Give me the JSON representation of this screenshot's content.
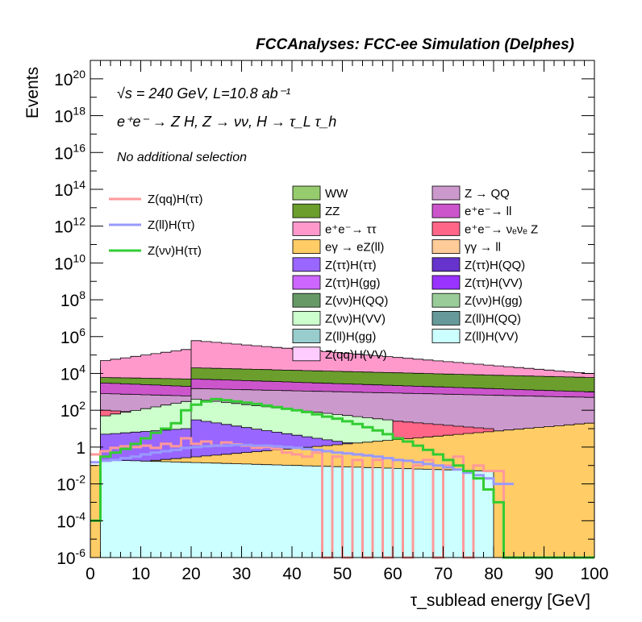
{
  "header": {
    "title": "FCCAnalyses: FCC-ee Simulation (Delphes)"
  },
  "annotations": {
    "energy_line": "√s = 240 GeV, L=10.8 ab⁻¹",
    "process_line": "e⁺e⁻ → Z H, Z → νν, H → τ_L τ_h",
    "selection_line": "No additional selection"
  },
  "chart_data": {
    "type": "bar",
    "stacked": true,
    "title": "FCCAnalyses: FCC-ee Simulation (Delphes)",
    "xlabel": "τ_sublead energy [GeV]",
    "ylabel": "Events",
    "xlim": [
      0,
      100
    ],
    "ylim": [
      1e-06,
      1e+21
    ],
    "yscale": "log",
    "bin_width": 2,
    "x_ticks": [
      0,
      10,
      20,
      30,
      40,
      50,
      60,
      70,
      80,
      90,
      100
    ],
    "y_tick_exponents": [
      -6,
      -4,
      -2,
      0,
      2,
      4,
      6,
      8,
      10,
      12,
      14,
      16,
      18,
      20
    ],
    "legend_placement": "top-center",
    "stack_envelopes": [
      {
        "name": "WW",
        "color": "#96cc6e",
        "segments": [
          [
            2,
            20,
            20000,
            10000
          ],
          [
            20,
            100,
            20000,
            10000
          ]
        ]
      },
      {
        "name": "e⁺e⁻→ ττ",
        "color": "#ff99cc",
        "segments": [
          [
            2,
            20,
            50000,
            200000
          ],
          [
            20,
            100,
            600000,
            10000
          ]
        ]
      },
      {
        "name": "ZZ",
        "color": "#6b9e2d",
        "segments": [
          [
            2,
            20,
            6000,
            5000
          ],
          [
            20,
            100,
            20000,
            6000
          ]
        ]
      },
      {
        "name": "e⁺e⁻→ ll",
        "color": "#cc55cc",
        "segments": [
          [
            2,
            20,
            3000,
            2000
          ],
          [
            20,
            100,
            5000,
            1000
          ]
        ]
      },
      {
        "name": "Z → QQ",
        "color": "#cc99cc",
        "segments": [
          [
            2,
            20,
            800,
            600
          ],
          [
            20,
            100,
            1500,
            500
          ]
        ]
      },
      {
        "name": "e⁺e⁻→ νₑνₑ Z",
        "color": "#ff6688",
        "segments": [
          [
            2,
            20,
            100,
            50
          ],
          [
            20,
            80,
            200,
            10
          ]
        ]
      },
      {
        "name": "Z(νν)H(VV)",
        "color": "#ccffcc",
        "segments": [
          [
            2,
            20,
            50,
            300
          ],
          [
            20,
            60,
            400,
            30
          ]
        ]
      },
      {
        "name": "Z(ττ)H(ττ)",
        "color": "#9966ff",
        "segments": [
          [
            2,
            20,
            5,
            10
          ],
          [
            20,
            70,
            30,
            0.3
          ]
        ]
      },
      {
        "name": "eγ → eZ(ll)",
        "color": "#ffcc66",
        "segments": [
          [
            0,
            100,
            0.1,
            20
          ]
        ]
      },
      {
        "name": "Z(ll)H(VV)",
        "color": "#ccffff",
        "segments": [
          [
            2,
            80,
            0.2,
            0.05
          ]
        ]
      }
    ],
    "series": [
      {
        "name": "Z(qq)H(ττ)",
        "color": "#ff9999",
        "values": [
          0.4,
          0.6,
          0.9,
          1.1,
          1.0,
          1.2,
          0.9,
          1.5,
          1.1,
          3.0,
          1.5,
          2.0,
          1.2,
          1.8,
          1.4,
          1.2,
          0.9,
          1.0,
          0.8,
          0.5,
          0.4,
          0.3,
          0.5,
          1e-06,
          0.3,
          1e-06,
          0.2,
          1e-06,
          0.2,
          1e-06,
          0.2,
          1e-06,
          0.1,
          0.2,
          1e-06,
          0.1,
          0.3,
          1e-06,
          0.1,
          0.05,
          0.05,
          1e-06
        ]
      },
      {
        "name": "Z(ll)H(ττ)",
        "color": "#9999ff",
        "values": [
          0.15,
          0.18,
          0.2,
          0.25,
          0.3,
          0.4,
          0.5,
          0.6,
          0.7,
          0.9,
          1.0,
          1.1,
          1.2,
          1.2,
          1.3,
          1.3,
          1.2,
          1.2,
          1.1,
          1.0,
          0.9,
          0.8,
          0.7,
          0.6,
          0.5,
          0.45,
          0.4,
          0.35,
          0.3,
          0.25,
          0.2,
          0.18,
          0.15,
          0.12,
          0.1,
          0.08,
          0.06,
          0.04,
          0.03,
          0.02,
          0.01,
          0.01
        ]
      },
      {
        "name": "Z(νν)H(ττ)",
        "color": "#33cc33",
        "values": [
          0.0001,
          0.3,
          0.5,
          0.8,
          1.5,
          3,
          6,
          10,
          20,
          100,
          200,
          300,
          400,
          350,
          300,
          260,
          220,
          180,
          150,
          120,
          100,
          80,
          60,
          45,
          35,
          25,
          18,
          12,
          8,
          5,
          3,
          2,
          1.2,
          0.7,
          0.4,
          0.2,
          0.1,
          0.05,
          0.02,
          0.005,
          0.001,
          1e-06,
          1e-06,
          1e-06,
          1e-06,
          1e-06,
          1e-06,
          1e-06,
          1e-06,
          1e-06
        ]
      }
    ],
    "legend_lines": [
      "Z(qq)H(ττ)",
      "Z(ll)H(ττ)",
      "Z(νν)H(ττ)"
    ],
    "legend_col1": [
      "WW",
      "ZZ",
      "e⁺e⁻→ ττ",
      "eγ → eZ(ll)",
      "Z(ττ)H(ττ)",
      "Z(ττ)H(gg)",
      "Z(νν)H(QQ)",
      "Z(νν)H(VV)",
      "Z(ll)H(gg)",
      "Z(qq)H(VV)"
    ],
    "legend_col1_colors": [
      "#96cc6e",
      "#6b9e2d",
      "#ff99cc",
      "#ffcc66",
      "#9966ff",
      "#cc66ff",
      "#669966",
      "#ccffcc",
      "#99cccc",
      "#ffccff"
    ],
    "legend_col2": [
      "Z → QQ",
      "e⁺e⁻→ ll",
      "e⁺e⁻→ νₑνₑ Z",
      "γγ → ll",
      "Z(ττ)H(QQ)",
      "Z(ττ)H(VV)",
      "Z(νν)H(gg)",
      "Z(ll)H(QQ)",
      "Z(ll)H(VV)"
    ],
    "legend_col2_colors": [
      "#cc99cc",
      "#cc55cc",
      "#ff6688",
      "#ffcc99",
      "#6633cc",
      "#9933ff",
      "#99cc99",
      "#669999",
      "#ccffff"
    ]
  }
}
